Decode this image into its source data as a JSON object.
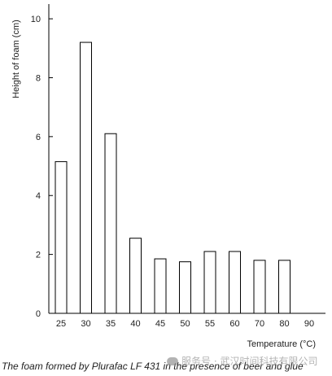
{
  "chart_data": {
    "type": "bar",
    "title": "",
    "xlabel": "Temperature (°C)",
    "ylabel": "Height of foam (cm)",
    "categories": [
      "25",
      "30",
      "35",
      "40",
      "45",
      "50",
      "55",
      "60",
      "70",
      "80",
      "90"
    ],
    "values": [
      5.15,
      9.2,
      6.1,
      2.55,
      1.85,
      1.75,
      2.1,
      2.1,
      1.8,
      1.8,
      0
    ],
    "yticks": [
      0,
      2,
      4,
      6,
      8,
      10
    ],
    "ylim": [
      0,
      10.5
    ],
    "grid": false,
    "bar_color": "#ffffff",
    "bar_edge_color": "#000000"
  },
  "caption": "The foam formed by Plurafac LF 431 in the presence of beer and glue",
  "watermark": "服务号 · 武汉时间科技有限公司"
}
